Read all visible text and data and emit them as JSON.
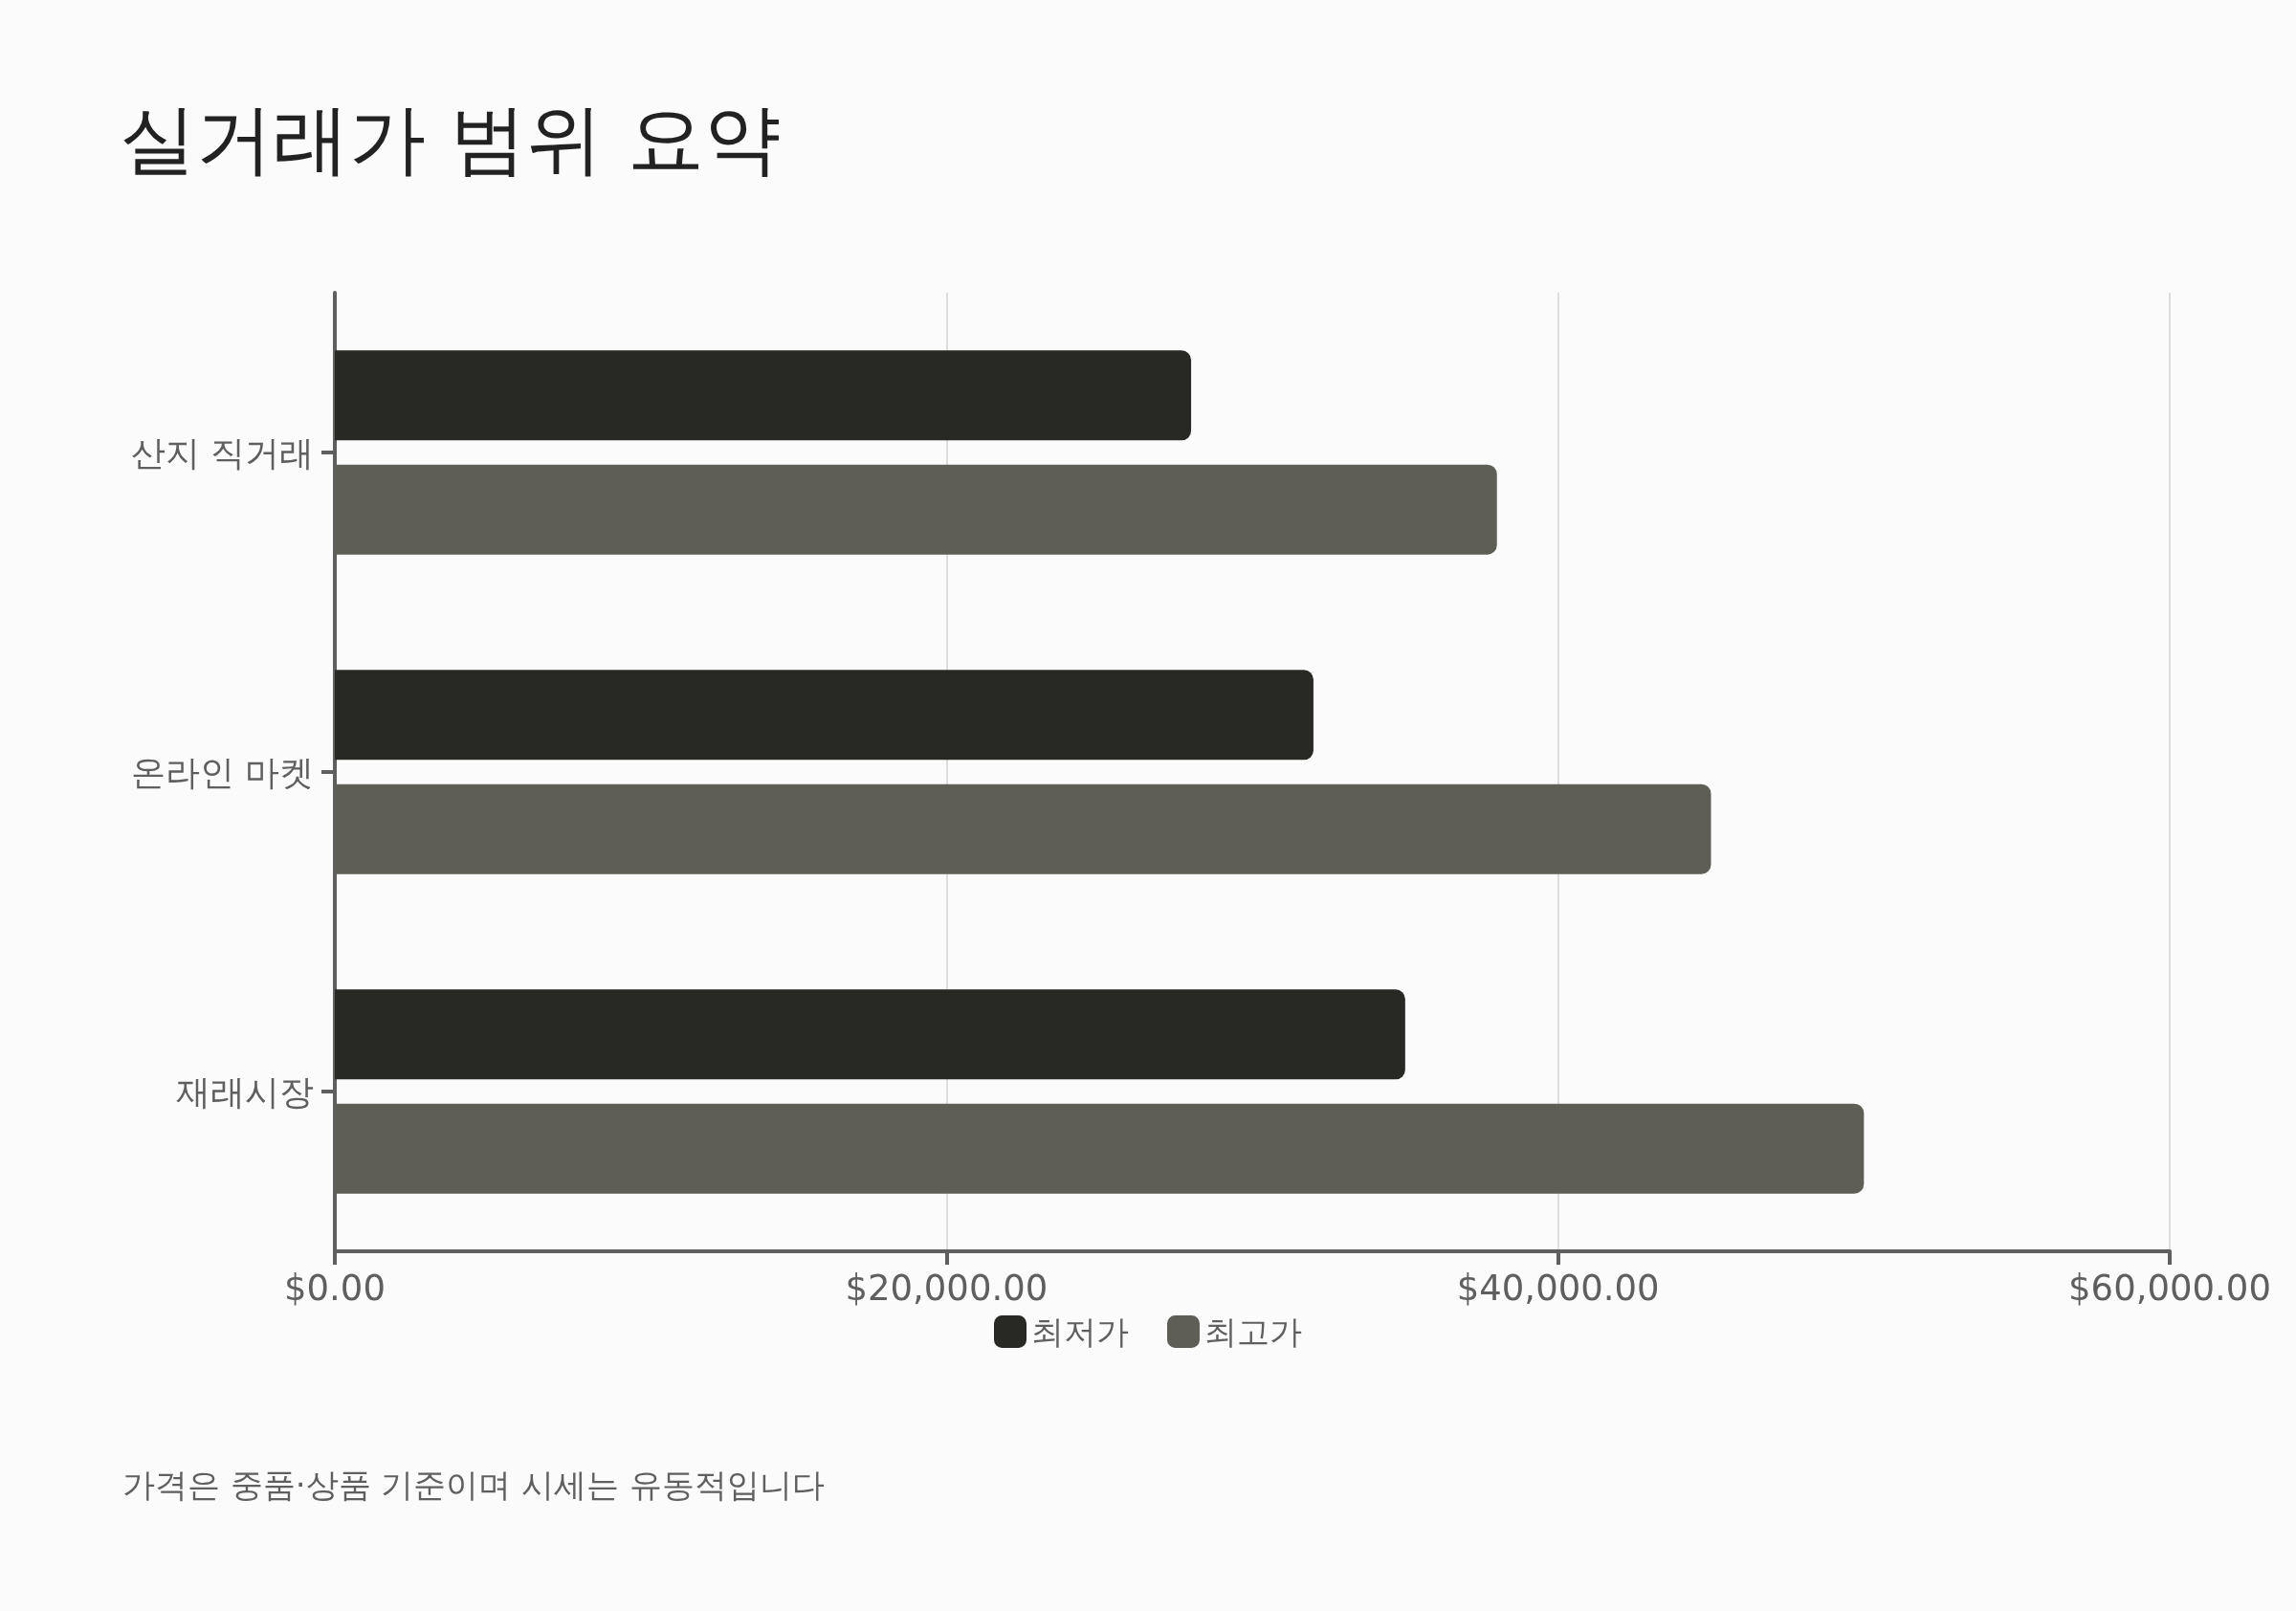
{
  "chart_data": {
    "type": "bar",
    "orientation": "horizontal",
    "title": "실거래가 범위 요약",
    "categories": [
      "산지 직거래",
      "온라인 마켓",
      "재래시장"
    ],
    "series": [
      {
        "name": "최저가",
        "color": "#282925",
        "values": [
          28000,
          32000,
          35000
        ]
      },
      {
        "name": "최고가",
        "color": "#5e5e56",
        "values": [
          38000,
          45000,
          50000
        ]
      }
    ],
    "xlim": [
      0,
      60000
    ],
    "xticks": [
      {
        "value": 0,
        "label": "$0.00"
      },
      {
        "value": 20000,
        "label": "$20,000.00"
      },
      {
        "value": 40000,
        "label": "$40,000.00"
      },
      {
        "value": 60000,
        "label": "$60,000.00"
      }
    ],
    "grid": "x",
    "legend": "bottom",
    "annotations": [
      "가격은 중품·상품 기준이며 시세는 유동적입니다"
    ]
  }
}
